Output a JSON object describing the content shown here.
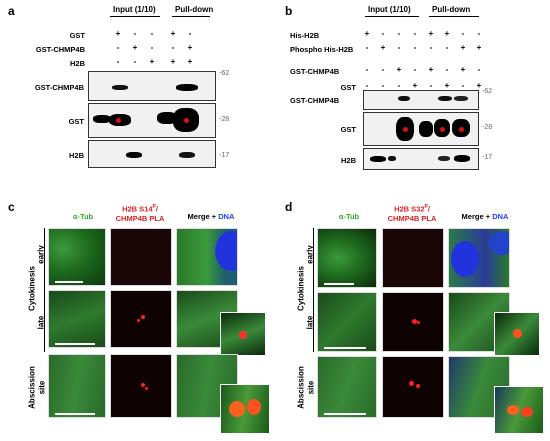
{
  "panel_a": {
    "letter": "a",
    "input_header": "Input (1/10)",
    "pulldown_header": "Pull-down",
    "conditions": [
      {
        "label": "GST",
        "marks": [
          "+",
          "-",
          "-",
          "+",
          "-"
        ]
      },
      {
        "label": "GST-CHMP4B",
        "marks": [
          "-",
          "+",
          "-",
          "-",
          "+"
        ]
      },
      {
        "label": "H2B",
        "marks": [
          "-",
          "-",
          "+",
          "+",
          "+"
        ]
      }
    ],
    "blots": [
      {
        "label": "GST-CHMP4B",
        "mw": "-62"
      },
      {
        "label": "GST",
        "mw": "-28"
      },
      {
        "label": "H2B",
        "mw": "-17"
      }
    ]
  },
  "panel_b": {
    "letter": "b",
    "input_header": "Input (1/10)",
    "pulldown_header": "Pull-down",
    "conditions": [
      {
        "label": "His-H2B",
        "marks": [
          "+",
          "-",
          "-",
          "-",
          "+",
          "+",
          "-",
          "-"
        ]
      },
      {
        "label": "Phospho His-H2B",
        "marks": [
          "-",
          "+",
          "-",
          "-",
          "-",
          "-",
          "+",
          "+"
        ]
      },
      {
        "label": "GST-CHMP4B",
        "marks": [
          "-",
          "-",
          "+",
          "-",
          "+",
          "-",
          "+",
          "-"
        ]
      },
      {
        "label": "GST",
        "marks": [
          "-",
          "-",
          "-",
          "+",
          "-",
          "+",
          "-",
          "+"
        ]
      }
    ],
    "blots": [
      {
        "label": "GST-CHMP4B",
        "mw": "-62"
      },
      {
        "label": "GST",
        "mw": "-28"
      },
      {
        "label": "H2B",
        "mw": "-17"
      }
    ]
  },
  "panel_c": {
    "letter": "c",
    "col_tub": "α-Tub",
    "col_pla_1": "H2B S14",
    "col_pla_sup": "P",
    "col_pla_2": "/",
    "col_pla_3": "CHMP4B PLA",
    "col_merge": "Merge + ",
    "col_dna": "DNA",
    "group_cytokinesis": "Cytokinesis",
    "row_early": "early",
    "row_late": "late",
    "row_abscission": "Abscission",
    "row_site": "site"
  },
  "panel_d": {
    "letter": "d",
    "col_tub": "α-Tub",
    "col_pla_1": "H2B S32",
    "col_pla_sup": "P",
    "col_pla_2": "/",
    "col_pla_3": "CHMP4B PLA",
    "col_merge": "Merge + ",
    "col_dna": "DNA",
    "group_cytokinesis": "Cytokinesis",
    "row_early": "early",
    "row_late": "late",
    "row_abscission": "Abscission",
    "row_site": "site"
  },
  "colors": {
    "tub_green": "#2faa2f",
    "pla_red": "#ff2020",
    "dna_blue": "#2040ff"
  }
}
